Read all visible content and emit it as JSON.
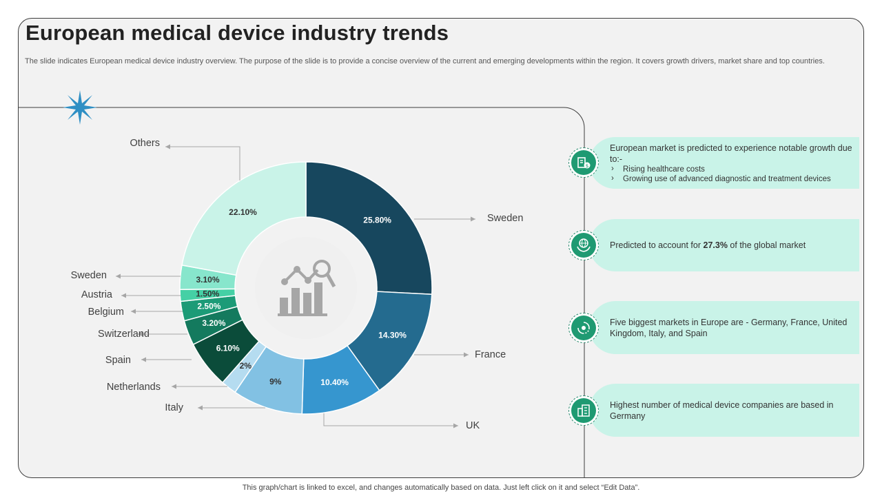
{
  "title": "European medical device industry trends",
  "subtitle": "The slide indicates European medical device industry overview. The purpose of the slide is to provide a concise overview of the current and emerging developments within the region. It covers growth drivers, market share and top countries.",
  "footnote": "This graph/chart is linked to excel, and changes automatically based on data. Just left click on it and select “Edit Data”.",
  "chart_data": {
    "type": "pie",
    "variant": "donut",
    "title": "",
    "slices": [
      {
        "label": "Sweden",
        "value": 25.8,
        "display": "25.80%",
        "color": "#17475e"
      },
      {
        "label": "France",
        "value": 14.3,
        "display": "14.30%",
        "color": "#246b8f"
      },
      {
        "label": "UK",
        "value": 10.4,
        "display": "10.40%",
        "color": "#3696cf"
      },
      {
        "label": "Italy",
        "value": 9,
        "display": "9%",
        "color": "#82c1e3"
      },
      {
        "label": "Netherlands",
        "value": 2,
        "display": "2%",
        "color": "#b5dcf0"
      },
      {
        "label": "Spain",
        "value": 6.1,
        "display": "6.10%",
        "color": "#0b4c3a"
      },
      {
        "label": "Switzerland",
        "value": 3.2,
        "display": "3.20%",
        "color": "#147a5e"
      },
      {
        "label": "Belgium",
        "value": 2.5,
        "display": "2.50%",
        "color": "#1c9b77"
      },
      {
        "label": "Austria",
        "value": 1.5,
        "display": "1.50%",
        "color": "#45d0a5"
      },
      {
        "label": "Sweden",
        "value": 3.1,
        "display": "3.10%",
        "color": "#87e6cc"
      },
      {
        "label": "Others",
        "value": 22.1,
        "display": "22.10%",
        "color": "#c9f3e8"
      }
    ]
  },
  "insights": [
    {
      "icon": "medical-cost-icon",
      "text": "European market is predicted to experience notable growth due to:-",
      "bullets": [
        "Rising healthcare costs",
        "Growing use of advanced diagnostic and treatment devices"
      ]
    },
    {
      "icon": "globe-hands-icon",
      "text_before": "Predicted to account for ",
      "highlight": "27.3%",
      "text_after": " of the global market"
    },
    {
      "icon": "market-cycle-icon",
      "text": "Five biggest markets in Europe are - Germany, France, United Kingdom, Italy, and Spain"
    },
    {
      "icon": "buildings-icon",
      "text": "Highest  number of medical device companies are based in Germany"
    }
  ]
}
